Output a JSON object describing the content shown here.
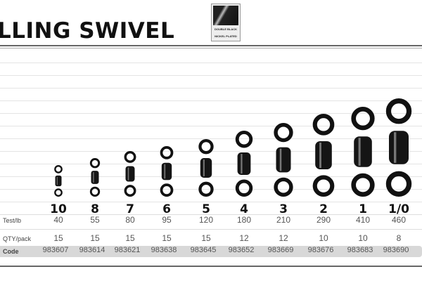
{
  "title": "LLING SWIVEL",
  "badge": {
    "line1": "DOUBLE BLACK",
    "line2": "NICKEL PLATED"
  },
  "colors": {
    "swivel": "#111111",
    "code_band": "#d8d8d8"
  },
  "table": {
    "row_labels": {
      "test": "Test/lb",
      "qty": "QTY/pack",
      "code": "Code"
    },
    "sizes": [
      "10",
      "8",
      "7",
      "6",
      "5",
      "4",
      "3",
      "2",
      "1",
      "1/0"
    ],
    "test_lb": [
      "40",
      "55",
      "80",
      "95",
      "120",
      "180",
      "210",
      "290",
      "410",
      "460"
    ],
    "qty_pack": [
      "15",
      "15",
      "15",
      "15",
      "15",
      "12",
      "12",
      "10",
      "10",
      "8"
    ],
    "codes": [
      "983607",
      "983614",
      "983621",
      "983638",
      "983645",
      "983652",
      "983669",
      "983676",
      "983683",
      "983690"
    ]
  }
}
